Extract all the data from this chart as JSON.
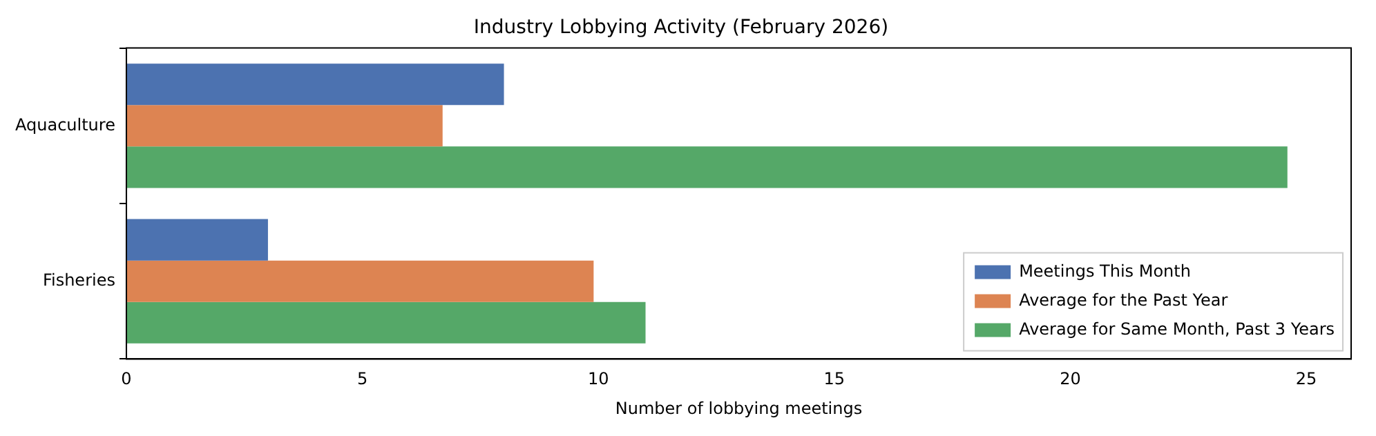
{
  "chart_data": {
    "type": "bar",
    "orientation": "horizontal",
    "title": "Industry Lobbying Activity (February 2026)",
    "xlabel": "Number of lobbying meetings",
    "categories": [
      "Aquaculture",
      "Fisheries"
    ],
    "series": [
      {
        "name": "Meetings This Month",
        "color": "#4c72b0",
        "values": [
          8,
          3
        ]
      },
      {
        "name": "Average for the Past Year",
        "color": "#dd8452",
        "values": [
          6.7,
          9.9
        ]
      },
      {
        "name": "Average for Same Month, Past 3 Years",
        "color": "#55a868",
        "values": [
          24.6,
          11
        ]
      }
    ],
    "xlim": [
      0,
      25.95
    ],
    "xticks": [
      0,
      5,
      10,
      15,
      20,
      25
    ],
    "grid": false,
    "legend": "bottom right"
  }
}
